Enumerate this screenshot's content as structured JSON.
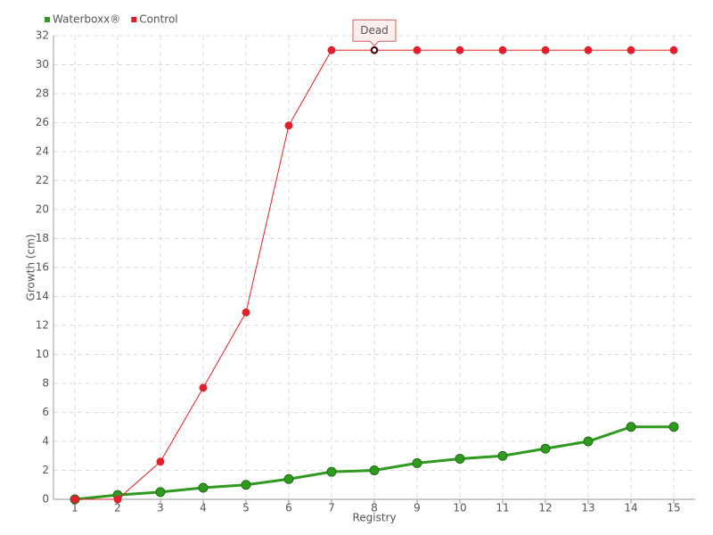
{
  "chart_data": {
    "type": "line",
    "x_label": "Registry",
    "y_label": "Growth (cm)",
    "categories": [
      "1",
      "2",
      "3",
      "4",
      "5",
      "6",
      "7",
      "8",
      "9",
      "10",
      "11",
      "12",
      "13",
      "14",
      "15"
    ],
    "series": [
      {
        "name": "Waterboxx®",
        "color": "#2f9a1f",
        "values": [
          0,
          0.3,
          0.5,
          0.8,
          1.0,
          1.4,
          1.9,
          2.0,
          2.5,
          2.8,
          3.0,
          3.5,
          4.0,
          5.0,
          5.0
        ]
      },
      {
        "name": "Control",
        "color": "#e0202c",
        "values": [
          0,
          0,
          2.6,
          7.7,
          12.9,
          25.8,
          31,
          31,
          31,
          31,
          31,
          31,
          31,
          31,
          31
        ]
      }
    ],
    "ylim": [
      0,
      32
    ],
    "yticks": [
      0,
      2,
      4,
      6,
      8,
      10,
      12,
      14,
      16,
      18,
      20,
      22,
      24,
      26,
      28,
      30,
      32
    ],
    "grid": true,
    "legend": "top-left",
    "annotations": [
      {
        "text": "Dead",
        "series": 1,
        "index": 7
      }
    ]
  }
}
